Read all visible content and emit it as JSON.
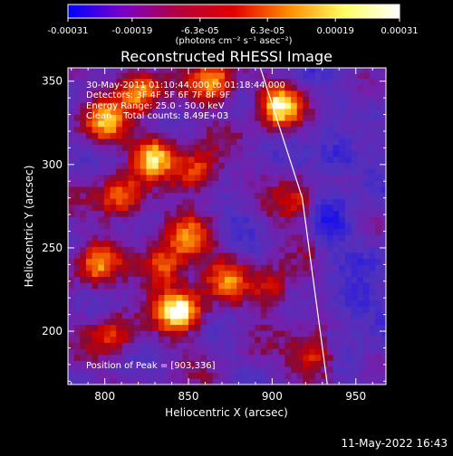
{
  "chart_data": {
    "type": "heatmap",
    "title": "Reconstructed RHESSI Image",
    "xlabel": "Heliocentric X (arcsec)",
    "ylabel": "Heliocentric Y (arcsec)",
    "xlim": [
      778,
      968
    ],
    "ylim": [
      168,
      358
    ],
    "x_ticks": [
      800,
      850,
      900,
      950
    ],
    "y_ticks": [
      200,
      250,
      300,
      350
    ],
    "x_tick_labels": [
      "800",
      "850",
      "900",
      "950"
    ],
    "y_tick_labels": [
      "200",
      "250",
      "300",
      "350"
    ],
    "colorbar": {
      "range": [
        -0.00031,
        0.00031
      ],
      "tick_values": [
        -0.00031,
        -0.00019,
        -6.3e-05,
        6.3e-05,
        0.00019,
        0.00031
      ],
      "tick_labels": [
        "-0.00031",
        "-0.00019",
        "-6.3e-05",
        "6.3e-05",
        "0.00019",
        "0.00031"
      ],
      "unit_label": "(photons cm⁻² s⁻¹ asec⁻²)",
      "colors": [
        "#0000ff",
        "#7a00c8",
        "#b4003c",
        "#e10000",
        "#ff8c00",
        "#ffff64",
        "#ffffff"
      ]
    },
    "info_lines": [
      "30-May-2011 01:10:44.000 to 01:18:44.000",
      "Detectors: 3F 4F 5F 6F 7F 8F 9F",
      "Energy Range: 25.0 - 50.0 keV",
      "Clean    Total counts: 8.49E+03"
    ],
    "peak_label": "Position of Peak = [903,336]",
    "peak_position": [
      903,
      336
    ],
    "limb_line": [
      [
        893,
        358
      ],
      [
        918,
        280
      ],
      [
        933,
        168
      ]
    ],
    "hotspots": [
      {
        "x": 845,
        "y": 212,
        "amp": 1.0
      },
      {
        "x": 905,
        "y": 336,
        "amp": 0.95
      },
      {
        "x": 865,
        "y": 350,
        "amp": 0.7
      },
      {
        "x": 820,
        "y": 345,
        "amp": 0.75
      },
      {
        "x": 800,
        "y": 325,
        "amp": 0.65
      },
      {
        "x": 830,
        "y": 305,
        "amp": 0.75
      },
      {
        "x": 855,
        "y": 295,
        "amp": 0.6
      },
      {
        "x": 810,
        "y": 280,
        "amp": 0.65
      },
      {
        "x": 850,
        "y": 255,
        "amp": 0.55
      },
      {
        "x": 835,
        "y": 238,
        "amp": 0.65
      },
      {
        "x": 795,
        "y": 240,
        "amp": 0.6
      },
      {
        "x": 873,
        "y": 232,
        "amp": 0.5
      },
      {
        "x": 900,
        "y": 225,
        "amp": 0.45
      },
      {
        "x": 925,
        "y": 186,
        "amp": 0.55
      },
      {
        "x": 915,
        "y": 278,
        "amp": 0.45
      },
      {
        "x": 805,
        "y": 198,
        "amp": 0.45
      },
      {
        "x": 948,
        "y": 322,
        "amp": 0.25
      }
    ],
    "coldspots": [
      {
        "x": 940,
        "y": 305,
        "amp": 0.5
      },
      {
        "x": 935,
        "y": 265,
        "amp": 0.35
      },
      {
        "x": 948,
        "y": 215,
        "amp": 0.4
      },
      {
        "x": 880,
        "y": 270,
        "amp": 0.25
      }
    ]
  },
  "timestamp": "11-May-2022 16:43"
}
